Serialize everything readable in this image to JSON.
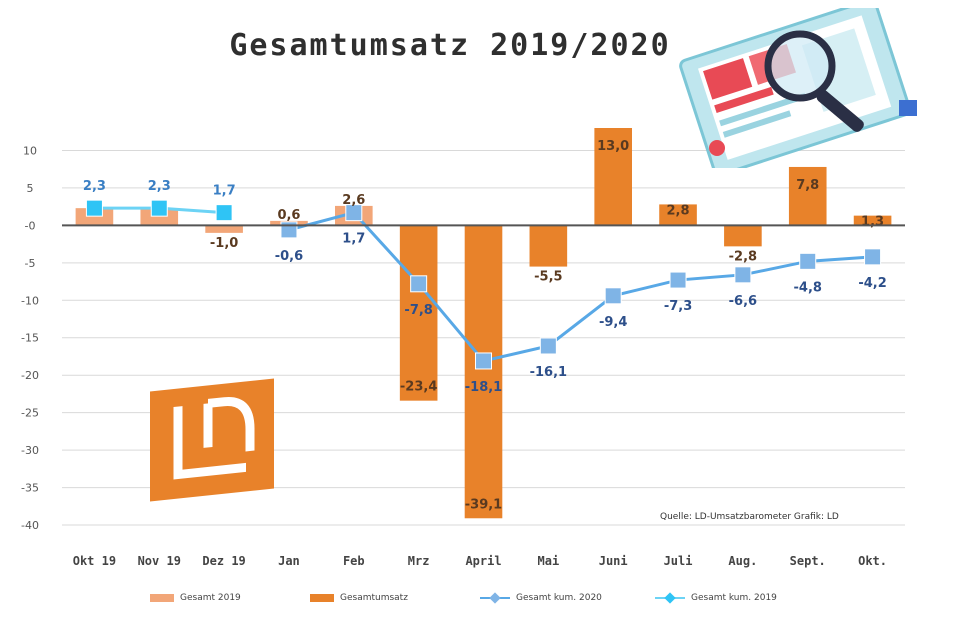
{
  "chart_data": {
    "type": "bar",
    "title": "Gesamtumsatz 2019/2020",
    "categories": [
      "Okt 19",
      "Nov 19",
      "Dez 19",
      "Jan",
      "Feb",
      "Mrz",
      "April",
      "Mai",
      "Juni",
      "Juli",
      "Aug.",
      "Sept.",
      "Okt."
    ],
    "ylim": [
      -42,
      13
    ],
    "yticks": [
      10,
      5,
      0,
      -5,
      -10,
      -15,
      -20,
      -25,
      -30,
      -35,
      -40
    ],
    "ytick_labels": [
      "10",
      "5",
      "-0",
      "-5",
      "-10",
      "-15",
      "-20",
      "-25",
      "-30",
      "-35",
      "-40"
    ],
    "grid": true,
    "legend_position": "bottom",
    "series": [
      {
        "name": "Gesamt 2019",
        "kind": "bar",
        "color": "#f2a678",
        "values": [
          2.3,
          2.3,
          -1.0,
          0.6,
          2.6,
          null,
          null,
          null,
          null,
          null,
          null,
          null,
          null
        ],
        "labels": [
          "",
          "",
          "-1,0",
          "0,6",
          "2,6",
          "",
          "",
          "",
          "",
          "",
          "",
          "",
          ""
        ]
      },
      {
        "name": "Gesamtumsatz",
        "kind": "bar",
        "color": "#e8822a",
        "values": [
          null,
          null,
          null,
          null,
          null,
          -23.4,
          -39.1,
          -5.5,
          13.0,
          2.8,
          -2.8,
          7.8,
          1.3
        ],
        "labels": [
          "",
          "",
          "",
          "",
          "",
          "-23,4",
          "-39,1",
          "-5,5",
          "13,0",
          "2,8",
          "-2,8",
          "7,8",
          "1,3"
        ]
      },
      {
        "name": "Gesamt kum. 2020",
        "kind": "line",
        "color": "#58a8e6",
        "marker_color": "#7fb4e6",
        "label_color": "#2d4f8a",
        "values": [
          null,
          null,
          null,
          -0.6,
          1.7,
          -7.8,
          -18.1,
          -16.1,
          -9.4,
          -7.3,
          -6.6,
          -4.8,
          -4.2
        ],
        "labels": [
          "",
          "",
          "",
          "-0,6",
          "1,7",
          "-7,8",
          "-18,1",
          "-16,1",
          "-9,4",
          "-7,3",
          "-6,6",
          "-4,8",
          "-4,2"
        ]
      },
      {
        "name": "Gesamt kum. 2019",
        "kind": "line",
        "color": "#6cd3f5",
        "marker_color": "#2fc4f5",
        "label_color": "#3a7fc4",
        "values": [
          2.3,
          2.3,
          1.7,
          null,
          null,
          null,
          null,
          null,
          null,
          null,
          null,
          null,
          null
        ],
        "labels": [
          "2,3",
          "2,3",
          "1,7",
          "",
          "",
          "",
          "",
          "",
          "",
          "",
          "",
          "",
          ""
        ]
      }
    ],
    "source": "Quelle: LD-Umsatzbarometer Grafik: LD"
  }
}
